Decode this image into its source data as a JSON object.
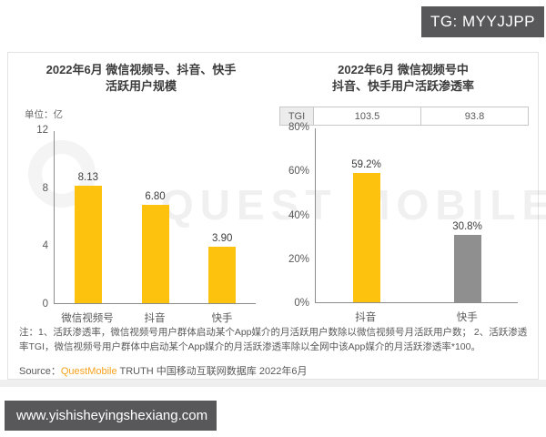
{
  "badge": {
    "text": "TG: MYYJJPP"
  },
  "url_bar": {
    "text": "www.yishisheyingshexiang.com"
  },
  "watermark": {
    "text": "QUEST MOBILE"
  },
  "footnote": "注：1、活跃渗透率，微信视频号用户群体启动某个App媒介的月活跃用户数除以微信视频号月活跃用户数； 2、活跃渗透率TGI，微信视频号用户群体中启动某个App媒介的月活跃渗透率除以全网中该App媒介的月活跃渗透率*100。",
  "source": {
    "prefix": "Source：",
    "brand": "QuestMobile",
    "rest": " TRUTH 中国移动互联网数据库 2022年6月"
  },
  "colors": {
    "accent_yellow": "#FCC20E",
    "bar_gray": "#8F8F8F",
    "badge_bg": "#58585A",
    "brand_orange": "#F6A21C"
  },
  "chart_data": [
    {
      "type": "bar",
      "title_line1": "2022年6月 微信视频号、抖音、快手",
      "title_line2": "活跃用户规模",
      "unit_label": "单位：亿",
      "categories": [
        "微信视频号",
        "抖音",
        "快手"
      ],
      "values": [
        8.13,
        6.8,
        3.9
      ],
      "value_labels": [
        "8.13",
        "6.80",
        "3.90"
      ],
      "bar_colors": [
        "#FCC20E",
        "#FCC20E",
        "#FCC20E"
      ],
      "ylim": [
        0,
        12
      ],
      "yticks": [
        "12",
        "8",
        "4",
        "0"
      ],
      "grid": false,
      "legend": false
    },
    {
      "type": "bar",
      "title_line1": "2022年6月 微信视频号中",
      "title_line2": "抖音、快手用户活跃渗透率",
      "tgi_row": {
        "header": "TGI",
        "values": [
          "103.5",
          "93.8"
        ]
      },
      "categories": [
        "抖音",
        "快手"
      ],
      "values": [
        59.2,
        30.8
      ],
      "value_labels": [
        "59.2%",
        "30.8%"
      ],
      "bar_colors": [
        "#FCC20E",
        "#8F8F8F"
      ],
      "ylim": [
        0,
        80
      ],
      "yticks": [
        "80%",
        "60%",
        "40%",
        "20%",
        "0%"
      ],
      "grid": false,
      "legend": false
    }
  ]
}
